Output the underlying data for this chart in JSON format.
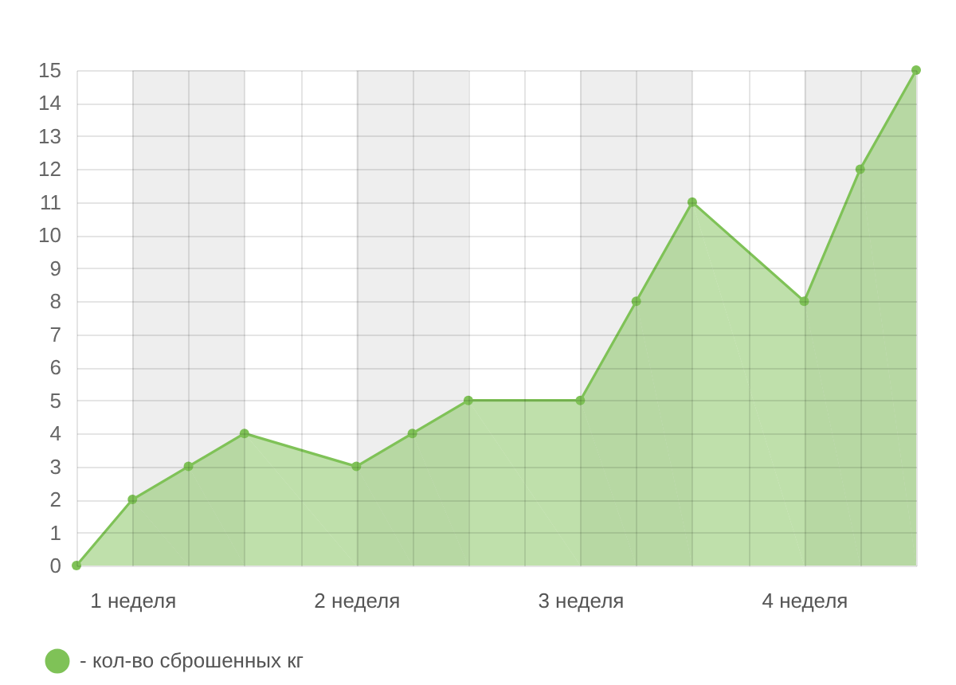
{
  "chart_data": {
    "type": "area",
    "x": [
      0.75,
      1,
      1.25,
      1.5,
      2,
      2.25,
      2.5,
      3,
      3.25,
      3.5,
      4,
      4.25,
      4.5
    ],
    "series": [
      {
        "name": "- кол-во сброшенных кг",
        "color": "#7fc257",
        "values": [
          0,
          2,
          3,
          4,
          3,
          4,
          5,
          5,
          8,
          11,
          8,
          12,
          15
        ]
      }
    ],
    "xlim": [
      0.75,
      4.5
    ],
    "xticks": [
      {
        "value": 0.75,
        "label": null
      },
      {
        "value": 1,
        "label": "1 неделя"
      },
      {
        "value": 1.25,
        "label": null
      },
      {
        "value": 1.5,
        "label": null
      },
      {
        "value": 1.75,
        "label": null
      },
      {
        "value": 2,
        "label": "2 неделя"
      },
      {
        "value": 2.25,
        "label": null
      },
      {
        "value": 2.5,
        "label": null
      },
      {
        "value": 2.75,
        "label": null
      },
      {
        "value": 3,
        "label": "3 неделя"
      },
      {
        "value": 3.25,
        "label": null
      },
      {
        "value": 3.5,
        "label": null
      },
      {
        "value": 3.75,
        "label": null
      },
      {
        "value": 4,
        "label": "4 неделя"
      },
      {
        "value": 4.25,
        "label": null
      },
      {
        "value": 4.5,
        "label": null
      }
    ],
    "ylim": [
      0,
      15
    ],
    "yticks": [
      0,
      1,
      2,
      3,
      4,
      5,
      6,
      7,
      8,
      9,
      10,
      11,
      12,
      13,
      14,
      15
    ],
    "bands": [
      {
        "axis": "x",
        "from": 1,
        "to": 1.5,
        "color": "#eeeeee"
      },
      {
        "axis": "x",
        "from": 2,
        "to": 2.5,
        "color": "#eeeeee"
      },
      {
        "axis": "x",
        "from": 3,
        "to": 3.5,
        "color": "#eeeeee"
      },
      {
        "axis": "x",
        "from": 4,
        "to": 4.5,
        "color": "#eeeeee"
      }
    ],
    "grid": true,
    "legend": "bottom left",
    "marker": "circle",
    "line_style": "solid"
  }
}
